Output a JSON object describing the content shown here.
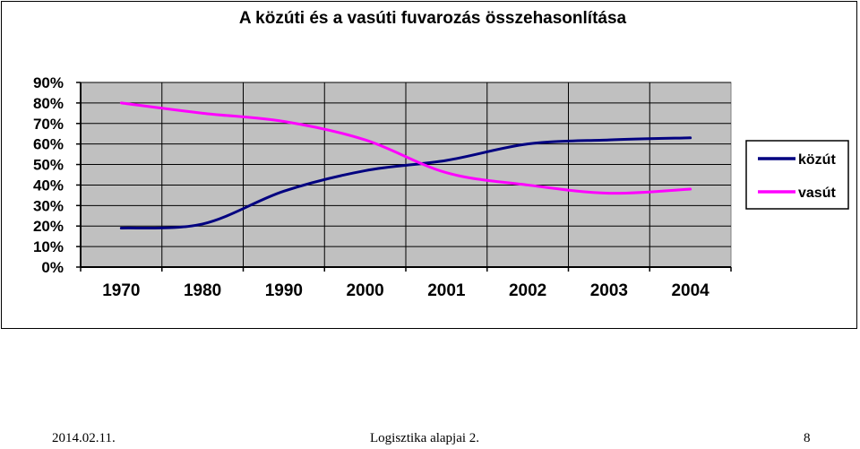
{
  "chart_data": {
    "type": "line",
    "title": "A közúti és a vasúti fuvarozás összehasonlítása",
    "categories": [
      "1970",
      "1980",
      "1990",
      "2000",
      "2001",
      "2002",
      "2003",
      "2004"
    ],
    "series": [
      {
        "name": "közút",
        "color": "#000080",
        "values": [
          19,
          21,
          37,
          47,
          52,
          60,
          62,
          63
        ]
      },
      {
        "name": "vasút",
        "color": "#ff00ff",
        "values": [
          80,
          75,
          71,
          62,
          46,
          40,
          36,
          38
        ]
      }
    ],
    "y_ticks": [
      "0%",
      "10%",
      "20%",
      "30%",
      "40%",
      "50%",
      "60%",
      "70%",
      "80%",
      "90%"
    ],
    "ylim": [
      0,
      90
    ],
    "grid": true,
    "plot_background": "#c0c0c0",
    "legend_position": "right"
  },
  "footer": {
    "date": "2014.02.11.",
    "course": "Logisztika alapjai 2.",
    "page": "8"
  }
}
